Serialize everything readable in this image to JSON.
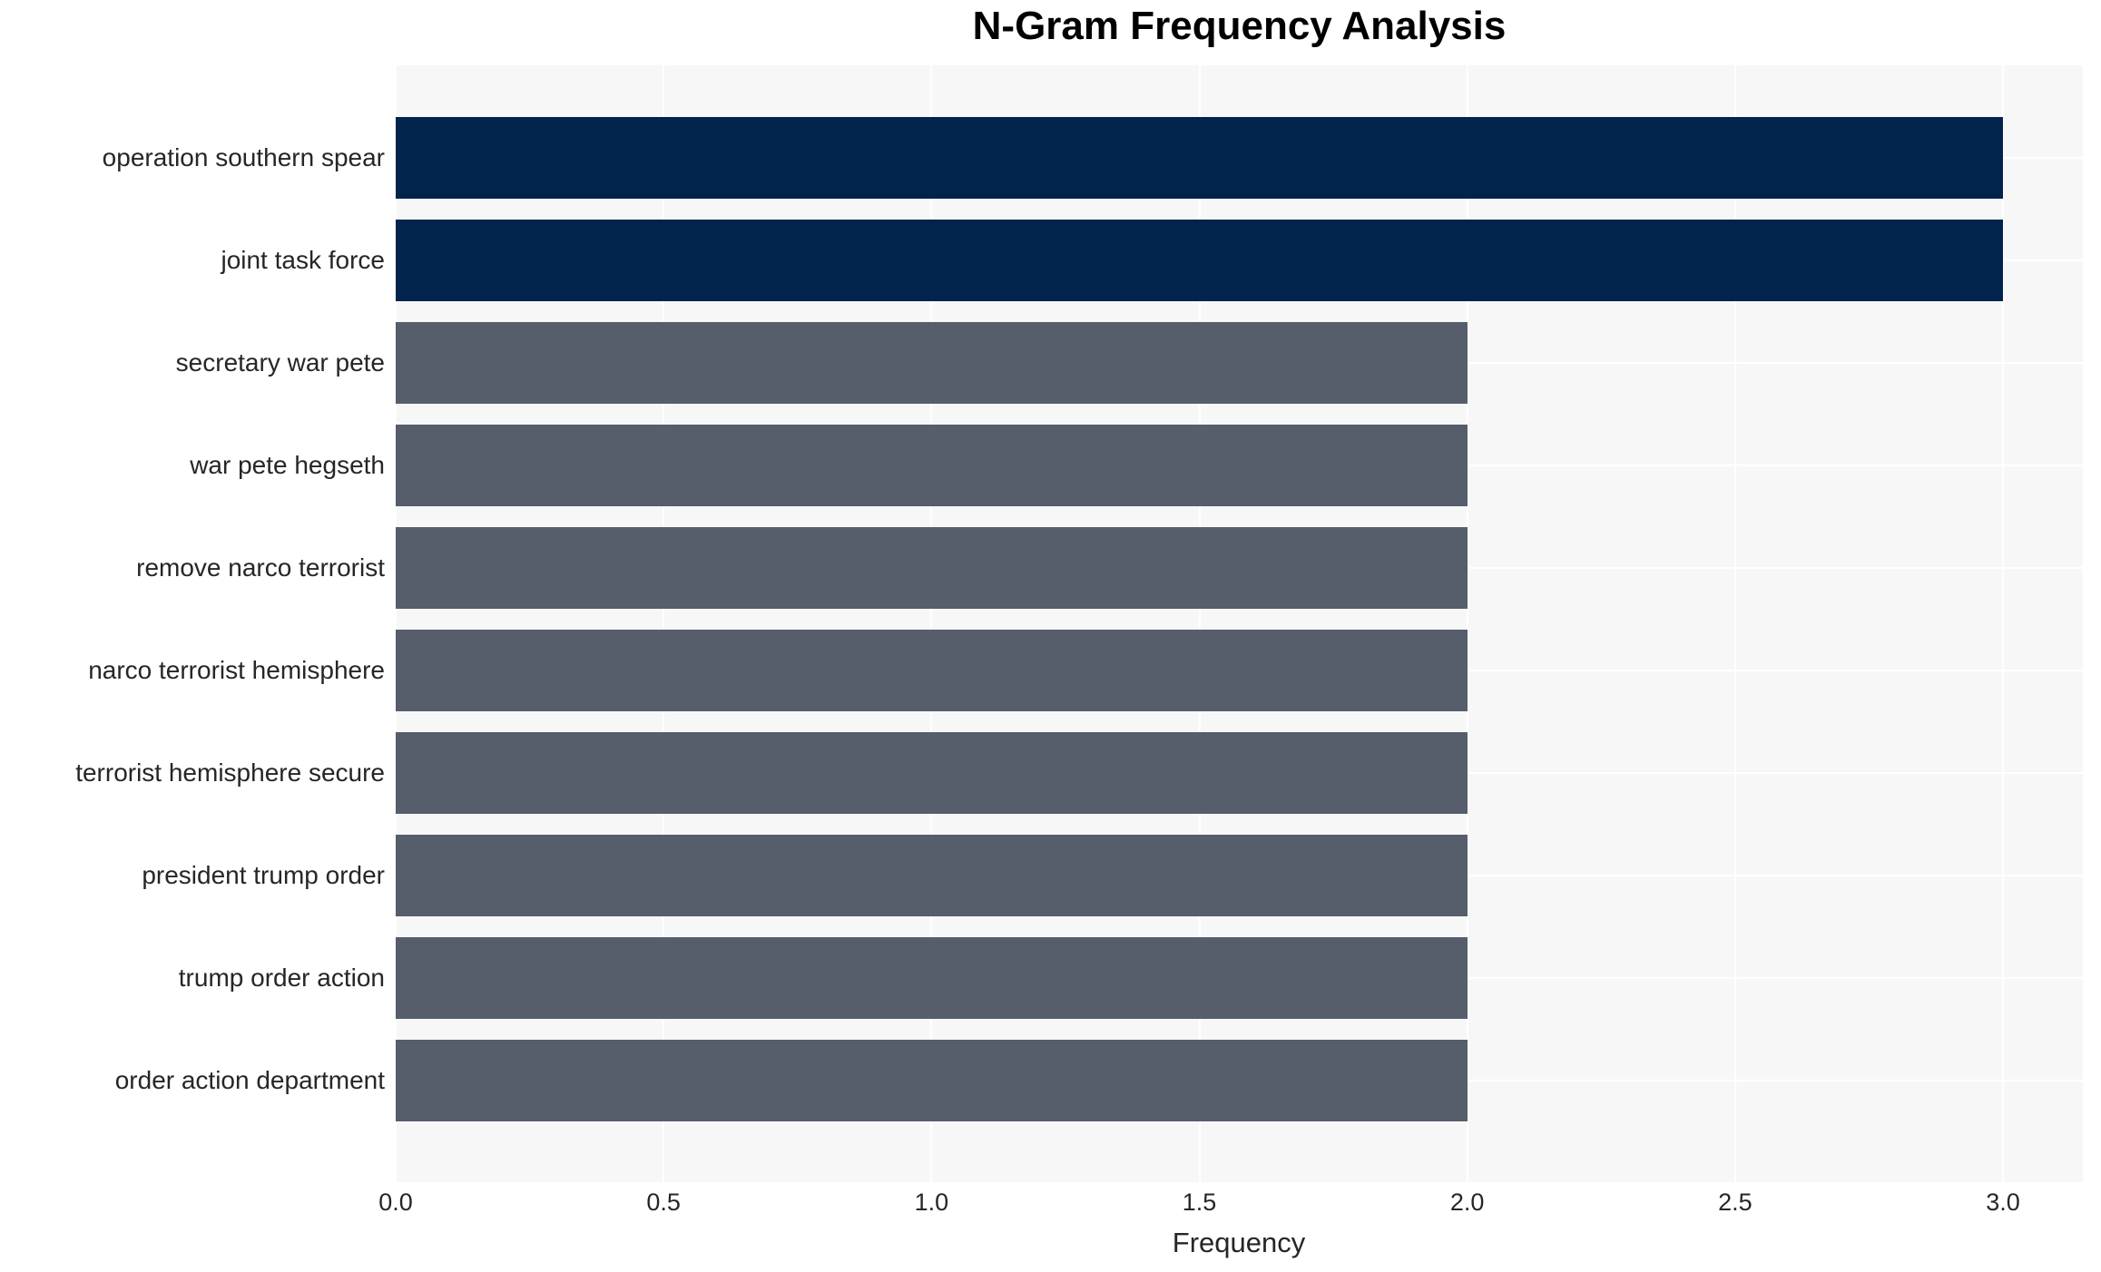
{
  "title": "N-Gram Frequency Analysis",
  "chart_data": {
    "type": "bar",
    "orientation": "horizontal",
    "title": "N-Gram Frequency Analysis",
    "categories": [
      "operation southern spear",
      "joint task force",
      "secretary war pete",
      "war pete hegseth",
      "remove narco terrorist",
      "narco terrorist hemisphere",
      "terrorist hemisphere secure",
      "president trump order",
      "trump order action",
      "order action department"
    ],
    "values": [
      3,
      3,
      2,
      2,
      2,
      2,
      2,
      2,
      2,
      2
    ],
    "bar_colors": [
      "#02234c",
      "#02234c",
      "#565d6b",
      "#565d6b",
      "#565d6b",
      "#565d6b",
      "#565d6b",
      "#565d6b",
      "#565d6b",
      "#565d6b"
    ],
    "xlabel": "Frequency",
    "ylabel": "",
    "xlim": [
      0,
      3.149
    ],
    "xticks": [
      0,
      0.5,
      1,
      1.5,
      2,
      2.5,
      3
    ],
    "xtick_labels": [
      "0.0",
      "0.5",
      "1.0",
      "1.5",
      "2.0",
      "2.5",
      "3.0"
    ],
    "grid": true,
    "legend": false,
    "colors": {
      "highlight": "#02234c",
      "default": "#565d6b",
      "plot_background": "#f7f7f7",
      "gridline": "#ffffff",
      "text": "#262626",
      "title_text": "#000000"
    }
  }
}
